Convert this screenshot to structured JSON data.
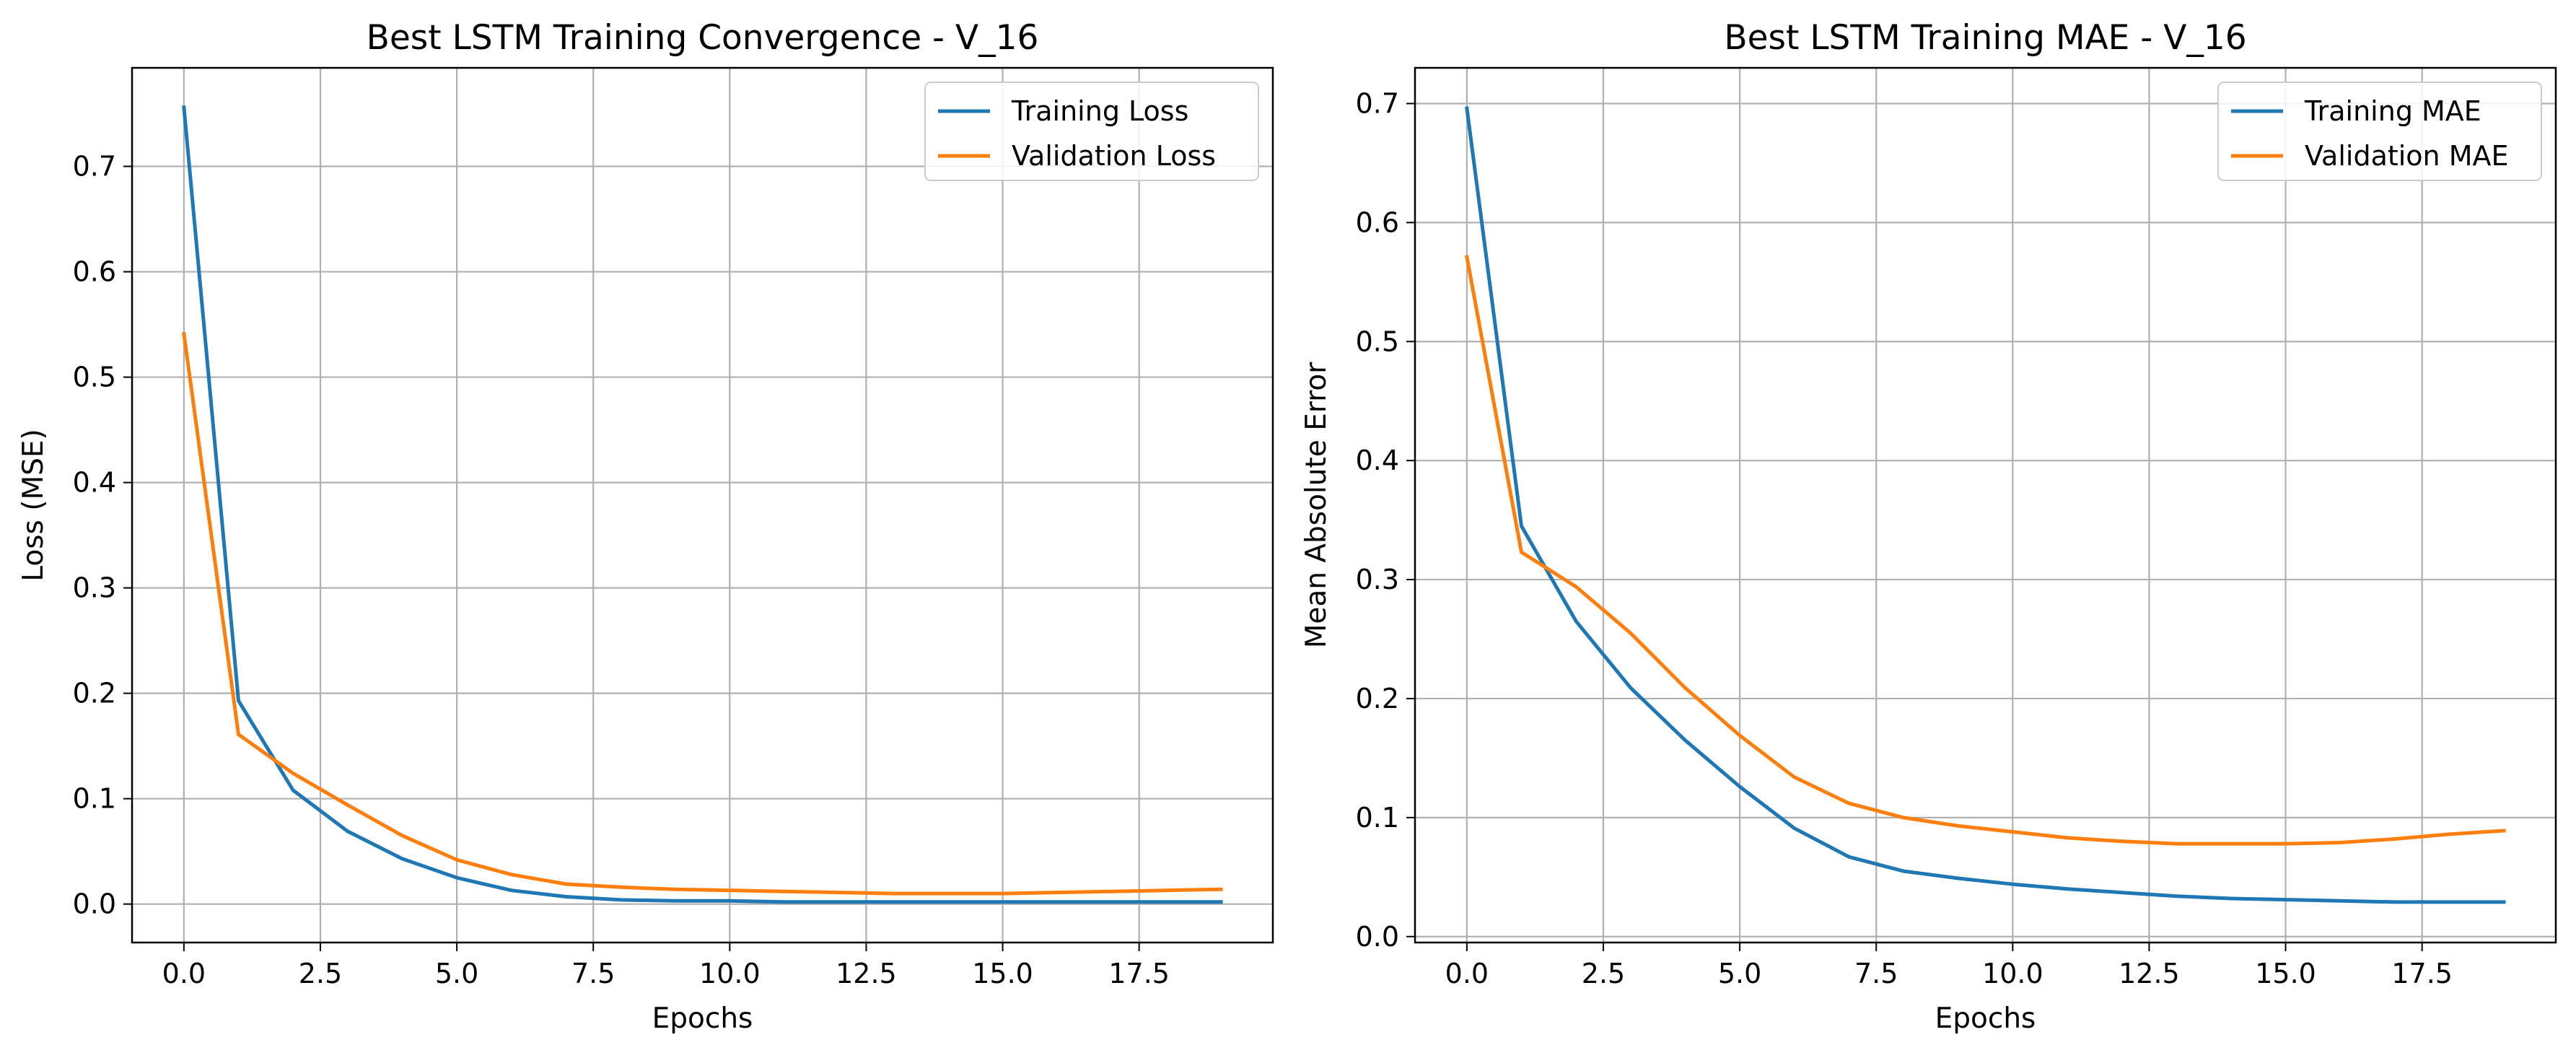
{
  "chart_data": [
    {
      "type": "line",
      "title": "Best LSTM Training Convergence - V_16",
      "xlabel": "Epochs",
      "ylabel": "Loss (MSE)",
      "xlim": [
        -0.95,
        19.95
      ],
      "ylim": [
        -0.0365,
        0.7935
      ],
      "xticks": [
        0,
        2.5,
        5,
        7.5,
        10,
        12.5,
        15,
        17.5
      ],
      "xtick_labels": [
        "0.0",
        "2.5",
        "5.0",
        "7.5",
        "10.0",
        "12.5",
        "15.0",
        "17.5"
      ],
      "yticks": [
        0,
        0.1,
        0.2,
        0.3,
        0.4,
        0.5,
        0.6,
        0.7
      ],
      "ytick_labels": [
        "0.0",
        "0.1",
        "0.2",
        "0.3",
        "0.4",
        "0.5",
        "0.6",
        "0.7"
      ],
      "grid": true,
      "legend_position": "top-right",
      "x": [
        0,
        1,
        2,
        3,
        4,
        5,
        6,
        7,
        8,
        9,
        10,
        11,
        12,
        13,
        14,
        15,
        16,
        17,
        18,
        19
      ],
      "series": [
        {
          "name": "Training Loss",
          "color": "#1f77b4",
          "values": [
            0.756,
            0.193,
            0.108,
            0.069,
            0.043,
            0.025,
            0.013,
            0.007,
            0.004,
            0.003,
            0.003,
            0.002,
            0.002,
            0.002,
            0.002,
            0.002,
            0.002,
            0.002,
            0.002,
            0.002
          ]
        },
        {
          "name": "Validation Loss",
          "color": "#ff7f0e",
          "values": [
            0.541,
            0.161,
            0.124,
            0.094,
            0.065,
            0.042,
            0.028,
            0.019,
            0.016,
            0.014,
            0.013,
            0.012,
            0.011,
            0.01,
            0.01,
            0.01,
            0.011,
            0.012,
            0.013,
            0.014
          ]
        }
      ]
    },
    {
      "type": "line",
      "title": "Best LSTM Training MAE - V_16",
      "xlabel": "Epochs",
      "ylabel": "Mean Absolute Error",
      "xlim": [
        -0.95,
        19.95
      ],
      "ylim": [
        -0.005,
        0.73
      ],
      "xticks": [
        0,
        2.5,
        5,
        7.5,
        10,
        12.5,
        15,
        17.5
      ],
      "xtick_labels": [
        "0.0",
        "2.5",
        "5.0",
        "7.5",
        "10.0",
        "12.5",
        "15.0",
        "17.5"
      ],
      "yticks": [
        0,
        0.1,
        0.2,
        0.3,
        0.4,
        0.5,
        0.6,
        0.7
      ],
      "ytick_labels": [
        "0.0",
        "0.1",
        "0.2",
        "0.3",
        "0.4",
        "0.5",
        "0.6",
        "0.7"
      ],
      "grid": true,
      "legend_position": "top-right",
      "x": [
        0,
        1,
        2,
        3,
        4,
        5,
        6,
        7,
        8,
        9,
        10,
        11,
        12,
        13,
        14,
        15,
        16,
        17,
        18,
        19
      ],
      "series": [
        {
          "name": "Training MAE",
          "color": "#1f77b4",
          "values": [
            0.696,
            0.345,
            0.265,
            0.209,
            0.165,
            0.126,
            0.091,
            0.067,
            0.055,
            0.049,
            0.044,
            0.04,
            0.037,
            0.034,
            0.032,
            0.031,
            0.03,
            0.029,
            0.029,
            0.029
          ]
        },
        {
          "name": "Validation MAE",
          "color": "#ff7f0e",
          "values": [
            0.571,
            0.323,
            0.294,
            0.255,
            0.209,
            0.169,
            0.134,
            0.112,
            0.1,
            0.093,
            0.088,
            0.083,
            0.08,
            0.078,
            0.078,
            0.078,
            0.079,
            0.082,
            0.086,
            0.089
          ]
        }
      ]
    }
  ]
}
